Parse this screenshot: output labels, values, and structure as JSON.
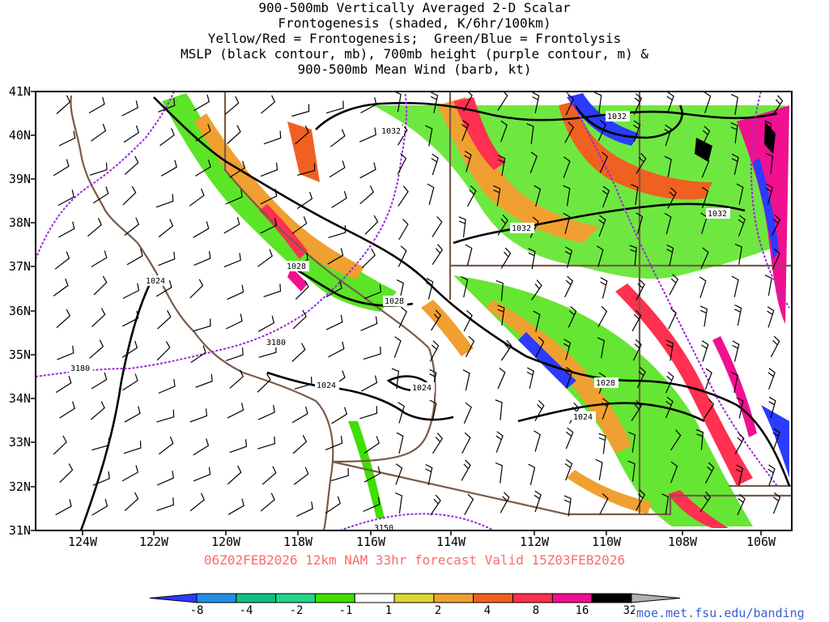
{
  "title": {
    "lines": [
      "900-500mb Vertically Averaged 2-D Scalar",
      "Frontogenesis (shaded, K/6hr/100km)",
      "Yellow/Red = Frontogenesis;  Green/Blue = Frontolysis",
      "MSLP (black contour, mb), 700mb height (purple contour, m) &",
      "900-500mb Mean Wind (barb, kt)"
    ]
  },
  "axes": {
    "lat_labels": [
      "41N",
      "40N",
      "39N",
      "38N",
      "37N",
      "36N",
      "35N",
      "34N",
      "33N",
      "32N",
      "31N"
    ],
    "lon_labels": [
      "124W",
      "122W",
      "120W",
      "118W",
      "116W",
      "114W",
      "112W",
      "110W",
      "108W",
      "106W"
    ]
  },
  "run_info": "06Z02FEB2026 12km NAM 33hr forecast Valid 15Z03FEB2026",
  "mslp_labels": [
    "1032",
    "1032",
    "1032",
    "1032",
    "1028",
    "1028",
    "1024",
    "1024",
    "1024",
    "1028",
    "1024"
  ],
  "height_labels": [
    "3180",
    "3180",
    "3150"
  ],
  "colorbar": {
    "labels": [
      "-8",
      "-4",
      "-2",
      "-1",
      "1",
      "2",
      "4",
      "8",
      "16",
      "32"
    ],
    "colors": [
      "#2b3bff",
      "#1f8fe8",
      "#10c080",
      "#22d48a",
      "#3ee000",
      "#ffffff",
      "#dcd630",
      "#f0a030",
      "#f06020",
      "#ff3050",
      "#f01090",
      "#000000",
      "#b0b0b0"
    ]
  },
  "credit": "moe.met.fsu.edu/banding",
  "colors": {
    "mslp": "#000000",
    "height": "#9a2bd6",
    "borders": "#7a5a48",
    "frame": "#000000"
  }
}
